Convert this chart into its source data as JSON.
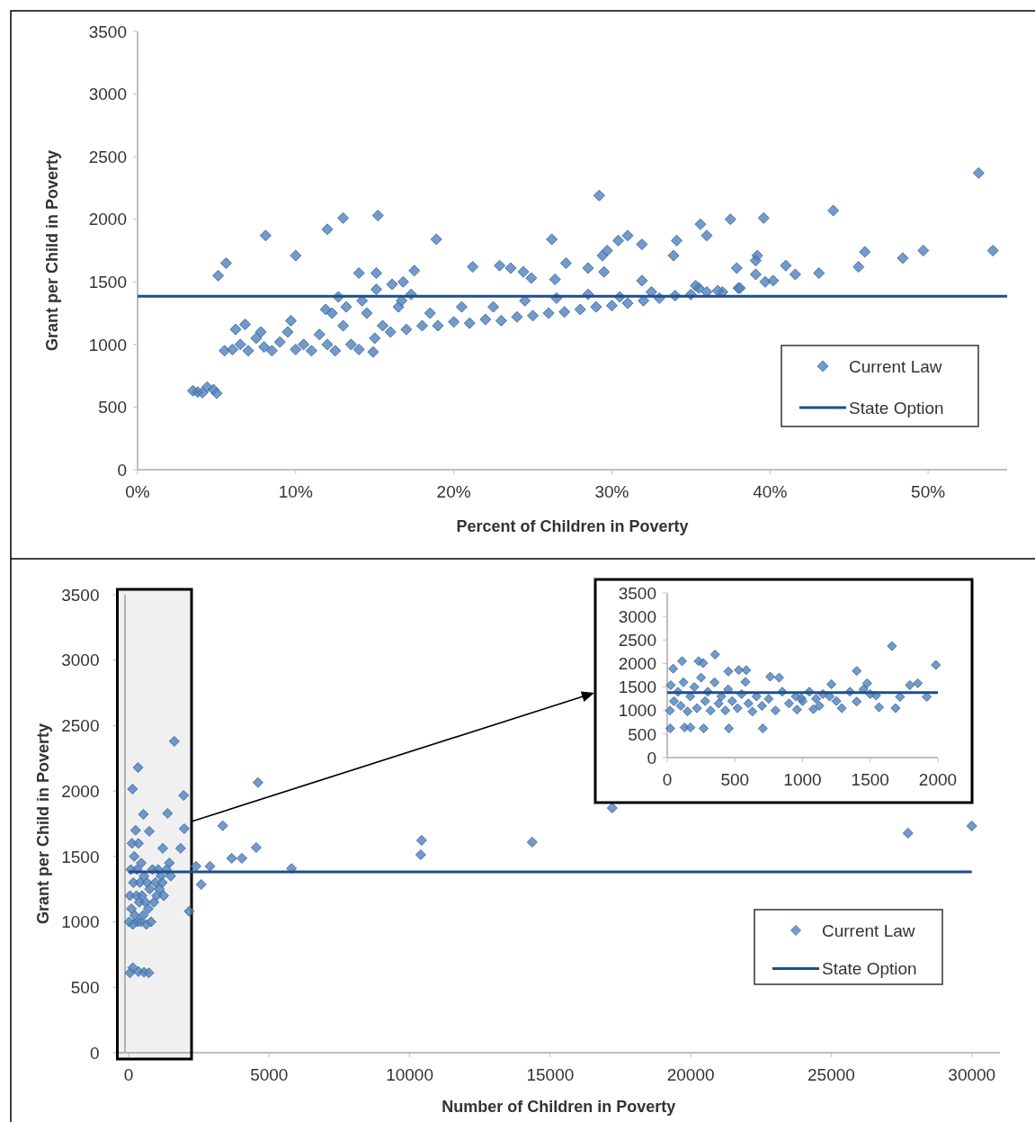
{
  "chart_data": [
    {
      "type": "scatter",
      "xlabel": "Percent of Children in Poverty",
      "ylabel": "Grant per Child in Poverty",
      "xlim": [
        0,
        55
      ],
      "ylim": [
        0,
        3500
      ],
      "xticks": [
        {
          "value": 0,
          "label": "0%"
        },
        {
          "value": 10,
          "label": "10%"
        },
        {
          "value": 20,
          "label": "20%"
        },
        {
          "value": 30,
          "label": "30%"
        },
        {
          "value": 40,
          "label": "40%"
        },
        {
          "value": 50,
          "label": "50%"
        }
      ],
      "yticks": [
        0,
        500,
        1000,
        1500,
        2000,
        2500,
        3000,
        3500
      ],
      "grid": false,
      "legend": "bottom right",
      "series": [
        {
          "name": "Current Law",
          "type": "scatter",
          "marker": "diamond",
          "color": "#4f81bd",
          "x": [
            3.5,
            3.8,
            4.1,
            4.4,
            4.8,
            5.0,
            5.5,
            6,
            6.5,
            7,
            7.5,
            8,
            8.5,
            9,
            9.5,
            10,
            10.5,
            11,
            11.5,
            12,
            12.5,
            13,
            13.5,
            14,
            14.5,
            15,
            15.5,
            16,
            16.5,
            17,
            18,
            18.5,
            19,
            20,
            20.5,
            21,
            22,
            22.5,
            23,
            24,
            24.5,
            25,
            26,
            26.5,
            27,
            28,
            28.5,
            29,
            30,
            30.5,
            31,
            32,
            32.5,
            33,
            34,
            35,
            35.5,
            36,
            37,
            38,
            6.2,
            6.8,
            7.8,
            9.7,
            11.9,
            12.3,
            13.2,
            14.2,
            16.7,
            17.3,
            12.7,
            15.1,
            14.9,
            53.2,
            54.1,
            44.0,
            29.2,
            39.6,
            37.5,
            35.6,
            36.0,
            31.0,
            30.4,
            31.9,
            33.9,
            34.1,
            26.2,
            18.9,
            15.2,
            13.0,
            12.0,
            8.1,
            10.0,
            5.6,
            5.1,
            14.0,
            15.1,
            17.5,
            16.8,
            16.1,
            21.2,
            22.9,
            23.6,
            24.4,
            24.9,
            27.1,
            28.5,
            29.4,
            29.7,
            29.5,
            26.4,
            31.9,
            37.9,
            39.2,
            39.1,
            39.1,
            39.7,
            40.2,
            41.0,
            41.6,
            43.1,
            45.6,
            46.0,
            48.4,
            49.7,
            38.1,
            35.3,
            36.7
          ],
          "values": [
            630,
            620,
            615,
            660,
            640,
            610,
            950,
            960,
            1000,
            950,
            1050,
            980,
            950,
            1020,
            1100,
            960,
            1000,
            950,
            1080,
            1000,
            950,
            1150,
            1000,
            960,
            1250,
            1050,
            1150,
            1100,
            1300,
            1120,
            1150,
            1250,
            1150,
            1180,
            1300,
            1170,
            1200,
            1300,
            1190,
            1220,
            1350,
            1230,
            1250,
            1370,
            1260,
            1280,
            1400,
            1300,
            1310,
            1380,
            1330,
            1350,
            1420,
            1370,
            1390,
            1400,
            1450,
            1420,
            1420,
            1450,
            1120,
            1160,
            1100,
            1190,
            1280,
            1250,
            1300,
            1350,
            1350,
            1400,
            1380,
            1440,
            940,
            2370,
            1750,
            2070,
            2190,
            2010,
            2000,
            1960,
            1870,
            1870,
            1830,
            1800,
            1710,
            1830,
            1840,
            1840,
            2030,
            2010,
            1920,
            1870,
            1710,
            1650,
            1550,
            1570,
            1570,
            1590,
            1500,
            1480,
            1620,
            1630,
            1610,
            1580,
            1530,
            1650,
            1610,
            1710,
            1750,
            1580,
            1520,
            1510,
            1610,
            1710,
            1670,
            1560,
            1500,
            1510,
            1630,
            1560,
            1570,
            1620,
            1740,
            1690,
            1750,
            1450,
            1470,
            1430
          ]
        },
        {
          "name": "State Option",
          "type": "line",
          "color": "#1f4e8c",
          "x": [
            0,
            55
          ],
          "values": [
            1385,
            1385
          ]
        }
      ]
    },
    {
      "type": "scatter",
      "xlabel": "Number of Children in Poverty",
      "ylabel": "Grant per Child in Poverty",
      "xlim": [
        -400,
        31000
      ],
      "ylim": [
        0,
        3500
      ],
      "bands": [
        {
          "axis": "x",
          "from": -400,
          "to": 2240,
          "color": "#000000"
        }
      ],
      "xticks": [
        0,
        5000,
        10000,
        15000,
        20000,
        25000,
        30000
      ],
      "yticks": [
        0,
        500,
        1000,
        1500,
        2000,
        2500,
        3000,
        3500
      ],
      "grid": false,
      "legend": "bottom right",
      "series": [
        {
          "name": "Current Law",
          "type": "scatter",
          "marker": "diamond",
          "color": "#4f81bd",
          "x": [
            20,
            50,
            80,
            100,
            120,
            150,
            170,
            200,
            220,
            250,
            280,
            300,
            320,
            350,
            380,
            400,
            430,
            450,
            480,
            520,
            550,
            600,
            630,
            660,
            700,
            750,
            800,
            850,
            900,
            950,
            1000,
            1050,
            1100,
            1150,
            1200,
            1250,
            1350,
            1450,
            1500,
            50,
            150,
            350,
            550,
            720,
            1628,
            336,
            138,
            1957,
            1385,
            1980,
            1215,
            1849,
            736,
            525,
            3348,
            4605,
            4541,
            3668,
            4030,
            5797,
            2895,
            2399,
            2584,
            2156,
            30000,
            27730,
            17207,
            14360,
            10426,
            10394
          ],
          "values": [
            1000,
            1200,
            1400,
            1100,
            1600,
            980,
            1300,
            1500,
            1050,
            1700,
            1200,
            1400,
            1000,
            1600,
            1150,
            1300,
            1000,
            1450,
            1200,
            1050,
            1350,
            1150,
            980,
            1300,
            1100,
            1250,
            1000,
            1400,
            1150,
            1300,
            1200,
            1400,
            1250,
            1350,
            1300,
            1200,
            1400,
            1450,
            1350,
            610,
            650,
            620,
            615,
            610,
            2380,
            2180,
            2015,
            1966,
            1829,
            1712,
            1562,
            1562,
            1692,
            1822,
            1735,
            2065,
            1568,
            1486,
            1486,
            1408,
            1425,
            1425,
            1286,
            1081,
            1733,
            1678,
            1870,
            1609,
            1623,
            1513
          ]
        },
        {
          "name": "State Option",
          "type": "line",
          "color": "#1f4e8c",
          "x": [
            0,
            30000
          ],
          "values": [
            1382,
            1382
          ]
        }
      ]
    },
    {
      "type": "scatter",
      "xlim": [
        0,
        2000
      ],
      "ylim": [
        0,
        3500
      ],
      "xticks": [
        0,
        500,
        1000,
        1500,
        2000
      ],
      "yticks": [
        0,
        500,
        1000,
        1500,
        2000,
        2500,
        3000,
        3500
      ],
      "grid": false,
      "legend": false,
      "series": [
        {
          "type": "scatter",
          "marker": "diamond",
          "color": "#4f81bd",
          "x": [
            20,
            50,
            80,
            100,
            120,
            150,
            170,
            200,
            220,
            250,
            280,
            300,
            320,
            350,
            380,
            400,
            430,
            450,
            480,
            520,
            550,
            600,
            630,
            660,
            700,
            750,
            800,
            850,
            900,
            950,
            1000,
            1050,
            1100,
            1150,
            1200,
            1250,
            1350,
            1450,
            1500,
            1660,
            1985,
            1400,
            353,
            1793,
            1852,
            1477,
            1213,
            1918,
            1720,
            1687,
            1400,
            1290,
            1080,
            959,
            761,
            827,
            584,
            529,
            452,
            578,
            22,
            128,
            172,
            269,
            456,
            706,
            110,
            232,
            265,
            44,
            26,
            1543,
            1565,
            992,
            1124
          ],
          "values": [
            1000,
            1200,
            1400,
            1100,
            1600,
            980,
            1300,
            1500,
            1050,
            1700,
            1200,
            1400,
            1000,
            1600,
            1150,
            1300,
            1000,
            1450,
            1200,
            1050,
            1350,
            1150,
            980,
            1300,
            1100,
            1250,
            1000,
            1400,
            1150,
            1300,
            1200,
            1400,
            1250,
            1350,
            1300,
            1200,
            1400,
            1450,
            1350,
            2370,
            1970,
            1840,
            2190,
            1540,
            1580,
            1580,
            1560,
            1290,
            1290,
            1050,
            1190,
            1050,
            1030,
            1020,
            1720,
            1700,
            1860,
            1860,
            1830,
            1610,
            620,
            640,
            640,
            620,
            620,
            620,
            2050,
            2050,
            2010,
            1890,
            1540,
            1320,
            1070,
            1260,
            1100
          ]
        },
        {
          "type": "line",
          "color": "#1f4e8c",
          "x": [
            0,
            2000
          ],
          "values": [
            1380,
            1380
          ]
        }
      ]
    }
  ]
}
